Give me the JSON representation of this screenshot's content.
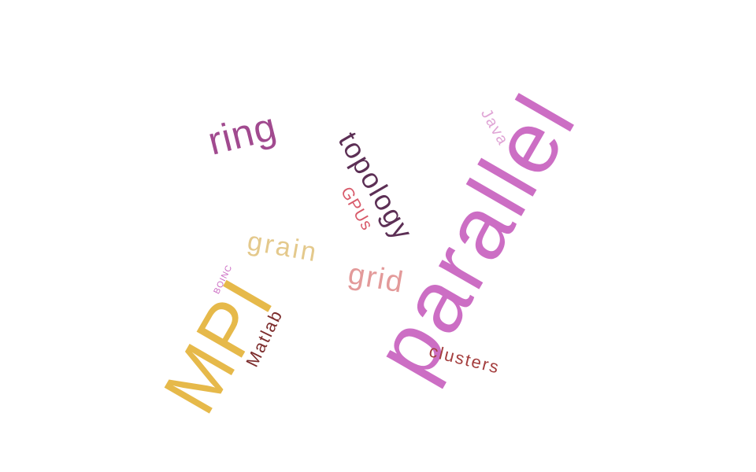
{
  "words": [
    {
      "id": "parallel",
      "text": "parallel",
      "color": "#cc6ec4"
    },
    {
      "id": "mpi",
      "text": "MPI",
      "color": "#e6b94a"
    },
    {
      "id": "ring",
      "text": "ring",
      "color": "#a14a8f"
    },
    {
      "id": "topology",
      "text": "topology",
      "color": "#5c2f55"
    },
    {
      "id": "grain",
      "text": "grain",
      "color": "#e4c98c"
    },
    {
      "id": "grid",
      "text": "grid",
      "color": "#e39a9a"
    },
    {
      "id": "clusters",
      "text": "clusters",
      "color": "#a43e3e"
    },
    {
      "id": "matlab",
      "text": "Matlab",
      "color": "#7c2c2c"
    },
    {
      "id": "gpus",
      "text": "GPUs",
      "color": "#d85a6a"
    },
    {
      "id": "java",
      "text": "Java",
      "color": "#e0a6d6"
    },
    {
      "id": "boinc",
      "text": "BOINC",
      "color": "#cc6ec4"
    }
  ]
}
